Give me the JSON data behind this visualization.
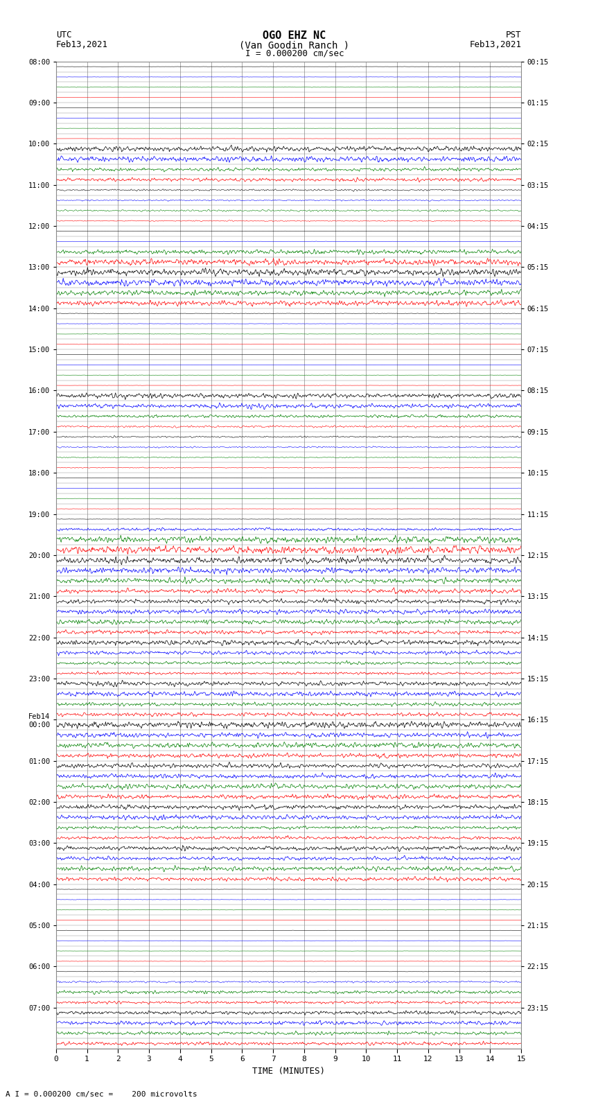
{
  "title_line1": "OGO EHZ NC",
  "title_line2": "(Van Goodin Ranch )",
  "title_line3": "I = 0.000200 cm/sec",
  "left_label_line1": "UTC",
  "left_label_line2": "Feb13,2021",
  "right_label_line1": "PST",
  "right_label_line2": "Feb13,2021",
  "bottom_label": "TIME (MINUTES)",
  "scale_label": "A I = 0.000200 cm/sec =    200 microvolts",
  "bg_color": "#ffffff",
  "grid_color": "#888888",
  "minutes_per_row": 15,
  "seed": 12345,
  "utc_hour_labels": [
    "08:00",
    "09:00",
    "10:00",
    "11:00",
    "12:00",
    "13:00",
    "14:00",
    "15:00",
    "16:00",
    "17:00",
    "18:00",
    "19:00",
    "20:00",
    "21:00",
    "22:00",
    "23:00",
    "Feb14\n00:00",
    "01:00",
    "02:00",
    "03:00",
    "04:00",
    "05:00",
    "06:00",
    "07:00"
  ],
  "pst_hour_labels": [
    "00:15",
    "01:15",
    "02:15",
    "03:15",
    "04:15",
    "05:15",
    "06:15",
    "07:15",
    "08:15",
    "09:15",
    "10:15",
    "11:15",
    "12:15",
    "13:15",
    "14:15",
    "15:15",
    "16:15",
    "17:15",
    "18:15",
    "19:15",
    "20:15",
    "21:15",
    "22:15",
    "23:15"
  ],
  "colors": [
    "#000000",
    "#0000ff",
    "#008000",
    "#ff0000"
  ],
  "rows_per_hour": 4,
  "total_hours": 24,
  "row_amplitudes": [
    0.03,
    0.03,
    0.05,
    0.03,
    0.02,
    0.02,
    0.03,
    0.03,
    0.8,
    0.7,
    0.6,
    0.5,
    0.3,
    0.2,
    0.25,
    0.15,
    0.05,
    0.05,
    0.6,
    0.8,
    1.0,
    0.9,
    0.8,
    0.7,
    0.05,
    0.05,
    0.04,
    0.04,
    0.04,
    0.03,
    0.04,
    0.03,
    0.8,
    0.7,
    0.4,
    0.3,
    0.25,
    0.2,
    0.15,
    0.1,
    0.05,
    0.04,
    0.03,
    0.04,
    0.05,
    0.4,
    0.9,
    1.0,
    1.0,
    0.9,
    0.8,
    0.7,
    0.7,
    0.6,
    0.7,
    0.6,
    0.7,
    0.6,
    0.5,
    0.5,
    0.7,
    0.6,
    0.5,
    0.5,
    0.8,
    0.7,
    0.7,
    0.6,
    0.8,
    0.7,
    0.7,
    0.6,
    0.7,
    0.6,
    0.5,
    0.5,
    0.7,
    0.6,
    0.7,
    0.6,
    0.05,
    0.05,
    0.04,
    0.04,
    0.04,
    0.03,
    0.03,
    0.04,
    0.04,
    0.3,
    0.5,
    0.4,
    0.5,
    0.5,
    0.5,
    0.5
  ]
}
